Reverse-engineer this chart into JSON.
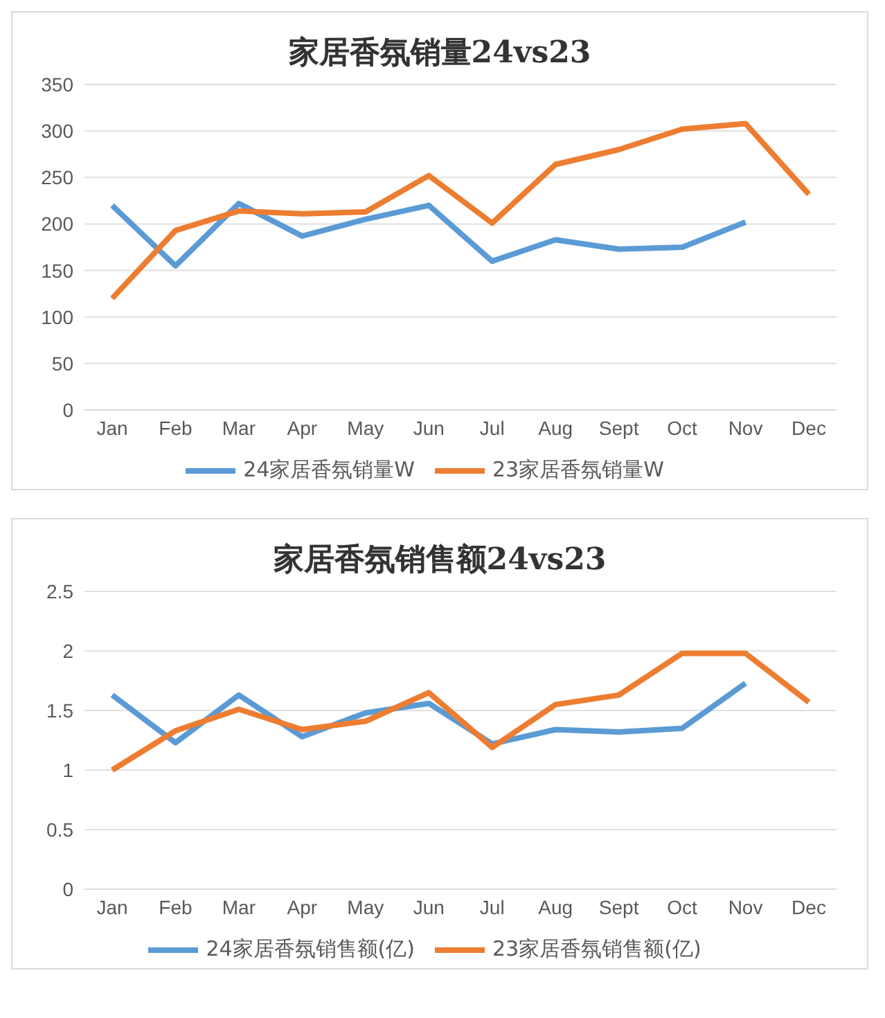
{
  "chart_data": [
    {
      "type": "line",
      "title": "家居香氛销量24vs23",
      "categories": [
        "Jan",
        "Feb",
        "Mar",
        "Apr",
        "May",
        "Jun",
        "Jul",
        "Aug",
        "Sept",
        "Oct",
        "Nov",
        "Dec"
      ],
      "series": [
        {
          "name": "24家居香氛销量W",
          "color": "#5b9bd5",
          "values": [
            220,
            155,
            222,
            187,
            205,
            220,
            160,
            183,
            173,
            175,
            202,
            null
          ]
        },
        {
          "name": "23家居香氛销量W",
          "color": "#ed7d31",
          "values": [
            120,
            193,
            214,
            211,
            213,
            252,
            201,
            264,
            280,
            302,
            308,
            232
          ]
        }
      ],
      "ylim": [
        0,
        350
      ],
      "yticks": [
        0,
        50,
        100,
        150,
        200,
        250,
        300,
        350
      ],
      "grid": "y",
      "legend": "bottom",
      "marker": "none",
      "line_style": "solid"
    },
    {
      "type": "line",
      "title": "家居香氛销售额24vs23",
      "categories": [
        "Jan",
        "Feb",
        "Mar",
        "Apr",
        "May",
        "Jun",
        "Jul",
        "Aug",
        "Sept",
        "Oct",
        "Nov",
        "Dec"
      ],
      "series": [
        {
          "name": "24家居香氛销售额(亿)",
          "color": "#5b9bd5",
          "values": [
            1.63,
            1.23,
            1.63,
            1.28,
            1.48,
            1.56,
            1.22,
            1.34,
            1.32,
            1.35,
            1.73,
            null
          ]
        },
        {
          "name": "23家居香氛销售额(亿)",
          "color": "#ed7d31",
          "values": [
            1.0,
            1.33,
            1.51,
            1.34,
            1.41,
            1.65,
            1.19,
            1.55,
            1.63,
            1.98,
            1.98,
            1.57
          ]
        }
      ],
      "ylim": [
        0,
        2.5
      ],
      "yticks": [
        0,
        0.5,
        1,
        1.5,
        2,
        2.5
      ],
      "grid": "y",
      "legend": "bottom",
      "marker": "none",
      "line_style": "solid"
    }
  ]
}
